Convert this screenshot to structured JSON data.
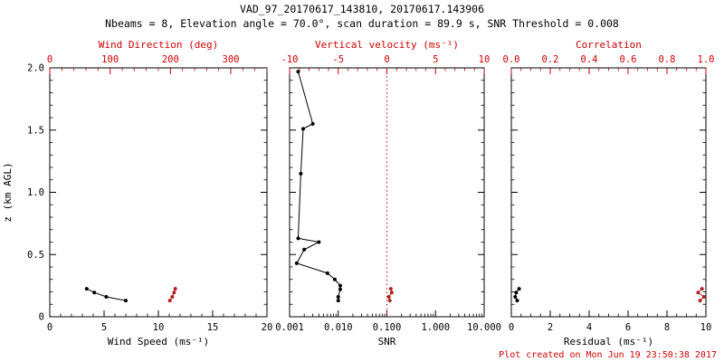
{
  "header": {
    "title": "VAD_97_20170617_143810, 20170617.143906",
    "subtitle": "Nbeams = 8, Elevation angle = 70.0°, scan duration = 89.9 s, SNR Threshold = 0.008"
  },
  "footer": {
    "created_text": "Plot created on Mon Jun 19 23:50:38 2017"
  },
  "colors": {
    "background": "#ffffff",
    "axis_black": "#000000",
    "axis_red": "#cc0000",
    "series_black": "#000000",
    "series_red": "#b22222"
  },
  "y_axis": {
    "label": "z (km AGL)",
    "range": [
      0,
      2
    ],
    "ticks": [
      0,
      0.5,
      1,
      1.5,
      2
    ],
    "tick_labels": [
      "0",
      "0.5",
      "1.0",
      "1.5",
      "2.0"
    ],
    "minor_step": 0.1
  },
  "chart_data": [
    {
      "type": "scatter",
      "name": "wind-panel",
      "bottom_axis": {
        "label": "Wind Speed (ms⁻¹)",
        "scale": "linear",
        "range": [
          0,
          20
        ],
        "ticks": [
          0,
          5,
          10,
          15,
          20
        ],
        "tick_labels": [
          "0",
          "5",
          "10",
          "15",
          "20"
        ],
        "minor_step": 1
      },
      "top_axis": {
        "label": "Wind Direction (deg)",
        "scale": "linear",
        "range": [
          0,
          360
        ],
        "ticks": [
          0,
          100,
          200,
          300
        ],
        "tick_labels": [
          "0",
          "100",
          "200",
          "300"
        ],
        "minor_step": 20
      },
      "series": [
        {
          "name": "wind-speed",
          "axis": "bottom",
          "color": "#000000",
          "line": true,
          "points": [
            [
              3.4,
              0.225
            ],
            [
              4.1,
              0.195
            ],
            [
              5.2,
              0.16
            ],
            [
              7.0,
              0.13
            ]
          ]
        },
        {
          "name": "wind-direction",
          "axis": "top",
          "color": "#b22222",
          "line": true,
          "points": [
            [
              199,
              0.13
            ],
            [
              203,
              0.16
            ],
            [
              206,
              0.195
            ],
            [
              208,
              0.225
            ]
          ]
        }
      ]
    },
    {
      "type": "scatter",
      "name": "snr-panel",
      "bottom_axis": {
        "label": "SNR",
        "scale": "log",
        "range": [
          0.001,
          10
        ],
        "ticks": [
          0.001,
          0.01,
          0.1,
          1,
          10
        ],
        "tick_labels": [
          "0.001",
          "0.010",
          "0.100",
          "1.000",
          "10.000"
        ]
      },
      "top_axis": {
        "label": "Vertical velocity (ms⁻¹)",
        "scale": "linear",
        "range": [
          -10,
          10
        ],
        "ticks": [
          -10,
          -5,
          0,
          5,
          10
        ],
        "tick_labels": [
          "-10",
          "-5",
          "0",
          "5",
          "10"
        ],
        "minor_step": 1
      },
      "ref_line": {
        "axis": "top",
        "value": 0,
        "color": "#cc0000",
        "style": "dotted"
      },
      "series": [
        {
          "name": "snr",
          "axis": "bottom",
          "color": "#000000",
          "line": true,
          "points": [
            [
              0.0015,
              1.97
            ],
            [
              0.003,
              1.55
            ],
            [
              0.0019,
              1.51
            ],
            [
              0.0017,
              1.15
            ],
            [
              0.0015,
              0.63
            ],
            [
              0.004,
              0.6
            ],
            [
              0.002,
              0.54
            ],
            [
              0.0014,
              0.43
            ],
            [
              0.006,
              0.35
            ],
            [
              0.0085,
              0.3
            ],
            [
              0.011,
              0.25
            ],
            [
              0.011,
              0.22
            ],
            [
              0.01,
              0.16
            ],
            [
              0.01,
              0.13
            ]
          ]
        },
        {
          "name": "vertical-velocity",
          "axis": "top",
          "color": "#b22222",
          "line": true,
          "points": [
            [
              0.3,
              0.13
            ],
            [
              0.2,
              0.16
            ],
            [
              0.5,
              0.195
            ],
            [
              0.4,
              0.225
            ]
          ]
        }
      ]
    },
    {
      "type": "scatter",
      "name": "residual-panel",
      "bottom_axis": {
        "label": "Residual (ms⁻¹)",
        "scale": "linear",
        "range": [
          0,
          10
        ],
        "ticks": [
          0,
          2,
          4,
          6,
          8,
          10
        ],
        "tick_labels": [
          "0",
          "2",
          "4",
          "6",
          "8",
          "10"
        ],
        "minor_step": 0.5
      },
      "top_axis": {
        "label": "Correlation",
        "scale": "linear",
        "range": [
          0,
          1
        ],
        "ticks": [
          0,
          0.2,
          0.4,
          0.6,
          0.8,
          1
        ],
        "tick_labels": [
          "0.0",
          "0.2",
          "0.4",
          "0.6",
          "0.8",
          "1.0"
        ],
        "minor_step": 0.05
      },
      "series": [
        {
          "name": "residual",
          "axis": "bottom",
          "color": "#000000",
          "line": true,
          "points": [
            [
              0.3,
              0.13
            ],
            [
              0.2,
              0.16
            ],
            [
              0.25,
              0.195
            ],
            [
              0.4,
              0.225
            ]
          ]
        },
        {
          "name": "correlation",
          "axis": "top",
          "color": "#b22222",
          "line": true,
          "points": [
            [
              0.97,
              0.13
            ],
            [
              0.99,
              0.16
            ],
            [
              0.96,
              0.195
            ],
            [
              0.98,
              0.225
            ]
          ]
        }
      ]
    }
  ]
}
